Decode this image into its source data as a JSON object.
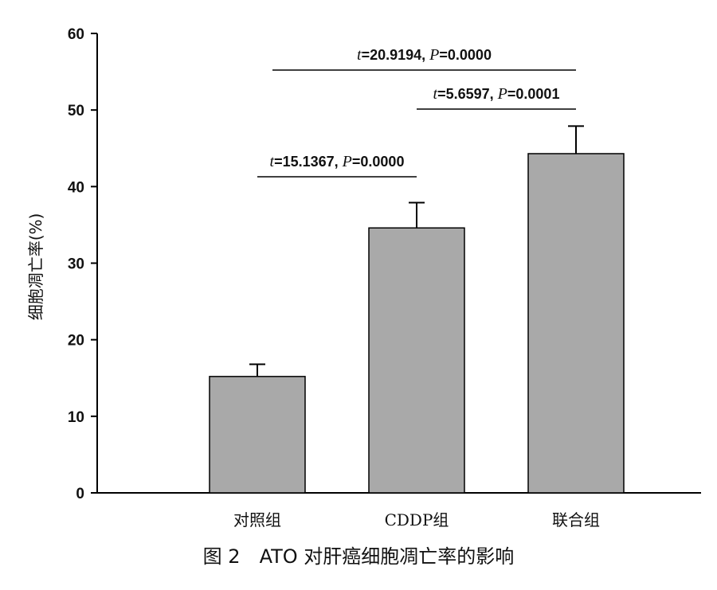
{
  "chart_data": {
    "type": "bar",
    "title": "",
    "xlabel": "",
    "ylabel": "细胞凋亡率(%)",
    "ylim": [
      0,
      60
    ],
    "yticks": [
      0,
      10,
      20,
      30,
      40,
      50,
      60
    ],
    "categories": [
      "对照组",
      "CDDP组",
      "联合组"
    ],
    "values": [
      15.2,
      34.6,
      44.3
    ],
    "error_upper": [
      16.8,
      37.9,
      47.9
    ],
    "bar_color": "#a9a9a9",
    "grid": false,
    "comparisons": [
      {
        "from": 0,
        "to": 1,
        "level": 1,
        "t_label": "t",
        "t_value": "=15.1367, ",
        "p_label": "P",
        "p_value": "=0.0000"
      },
      {
        "from": 1,
        "to": 2,
        "level": 2,
        "t_label": "t",
        "t_value": "=5.6597, ",
        "p_label": "P",
        "p_value": "=0.0001"
      },
      {
        "from": 0,
        "to": 2,
        "level": 3,
        "t_label": "t",
        "t_value": "=20.9194, ",
        "p_label": "P",
        "p_value": "=0.0000"
      }
    ]
  },
  "caption": "图 2　ATO 对肝癌细胞凋亡率的影响"
}
